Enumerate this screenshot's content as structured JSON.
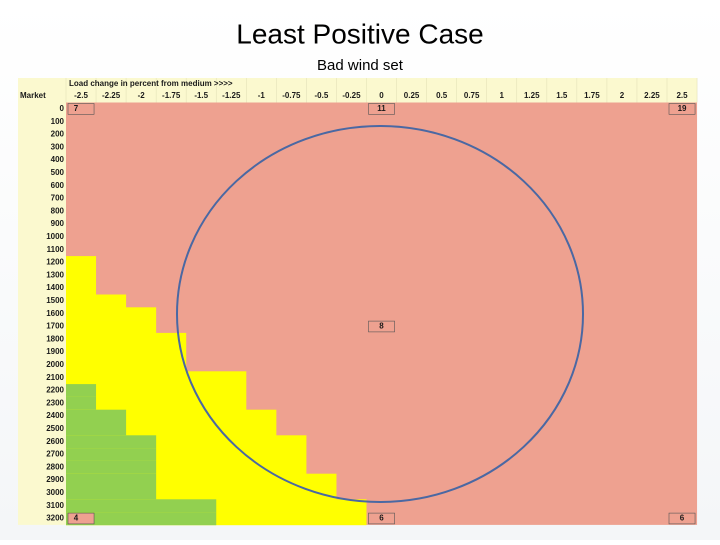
{
  "header": {
    "title": "Least Positive Case",
    "subtitle": "Bad wind set"
  },
  "table": {
    "caption": "Load change in percent from medium >>>>",
    "row_header_label": "Market",
    "columns": [
      "-2.5",
      "-2.25",
      "-2",
      "-1.75",
      "-1.5",
      "-1.25",
      "-1",
      "-0.75",
      "-0.5",
      "-0.25",
      "0",
      "0.25",
      "0.5",
      "0.75",
      "1",
      "1.25",
      "1.5",
      "1.75",
      "2",
      "2.25",
      "2.5"
    ],
    "rows": [
      "0",
      "100",
      "200",
      "300",
      "400",
      "500",
      "600",
      "700",
      "800",
      "900",
      "1000",
      "1100",
      "1200",
      "1300",
      "1400",
      "1500",
      "1600",
      "1700",
      "1800",
      "1900",
      "2000",
      "2100",
      "2200",
      "2300",
      "2400",
      "2500",
      "2600",
      "2700",
      "2800",
      "2900",
      "3000",
      "3100",
      "3200"
    ],
    "cell_labels": [
      "7",
      "11",
      "19",
      "8",
      "4",
      "6",
      "6"
    ]
  }
}
